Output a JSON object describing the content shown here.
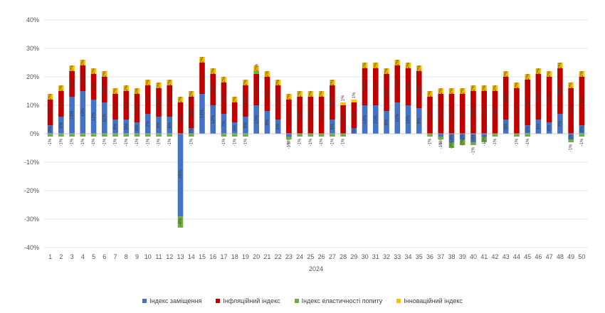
{
  "chart_data": {
    "type": "bar",
    "stacked": true,
    "xlabel": "2024",
    "ylim": [
      -40,
      40
    ],
    "yticks": [
      "40%",
      "30%",
      "20%",
      "10%",
      "0%",
      "-10%",
      "-20%",
      "-30%",
      "-40%"
    ],
    "categories": [
      "1",
      "2",
      "3",
      "4",
      "5",
      "6",
      "7",
      "8",
      "9",
      "10",
      "11",
      "12",
      "13",
      "14",
      "15",
      "16",
      "17",
      "18",
      "19",
      "20",
      "21",
      "22",
      "23",
      "24",
      "25",
      "26",
      "27",
      "28",
      "29",
      "30",
      "31",
      "32",
      "33",
      "34",
      "35",
      "36",
      "37",
      "38",
      "39",
      "40",
      "41",
      "42",
      "43",
      "44",
      "45",
      "46",
      "47",
      "48",
      "49",
      "50"
    ],
    "series": [
      {
        "name": "Індекс заміщення",
        "color": "#4472C4",
        "values": [
          3,
          6,
          13,
          15,
          12,
          11,
          5,
          5,
          4,
          7,
          6,
          6,
          -29,
          2,
          14,
          10,
          7,
          4,
          6,
          10,
          8,
          5,
          -1,
          0,
          0,
          0,
          5,
          0,
          2,
          10,
          10,
          8,
          11,
          10,
          9,
          0,
          -1,
          -3,
          -2,
          -3,
          -1,
          0,
          5,
          0,
          3,
          5,
          4,
          7,
          -2,
          3
        ]
      },
      {
        "name": "Інфляційний індекс",
        "color": "#C00000",
        "values": [
          9,
          9,
          9,
          9,
          9,
          9,
          9,
          10,
          10,
          10,
          10,
          11,
          11,
          11,
          11,
          11,
          11,
          7,
          11,
          11,
          12,
          12,
          12,
          13,
          13,
          13,
          12,
          10,
          9,
          13,
          13,
          13,
          13,
          13,
          13,
          13,
          14,
          14,
          14,
          15,
          15,
          15,
          15,
          16,
          16,
          16,
          16,
          16,
          16,
          17
        ]
      },
      {
        "name": "Індекс еластичності попиту",
        "color": "#70AD47",
        "values": [
          -1,
          -1,
          -1,
          -1,
          -1,
          -1,
          -1,
          -1,
          -1,
          -1,
          -1,
          -1,
          -4,
          -1,
          0,
          0,
          -1,
          -1,
          -1,
          1,
          0,
          0,
          -1,
          -1,
          -1,
          -1,
          -1,
          -1,
          0,
          0,
          0,
          0,
          0,
          0,
          0,
          -1,
          -1,
          -2,
          -2,
          -1,
          -2,
          -1,
          0,
          -1,
          -1,
          0,
          0,
          0,
          -1,
          -1
        ]
      },
      {
        "name": "Інноваційний індекс",
        "color": "#FFC000",
        "values": [
          2,
          2,
          2,
          2,
          2,
          2,
          2,
          2,
          2,
          2,
          2,
          2,
          2,
          2,
          2,
          2,
          2,
          2,
          2,
          2,
          2,
          2,
          2,
          2,
          2,
          2,
          2,
          1,
          1,
          2,
          2,
          2,
          2,
          2,
          2,
          2,
          2,
          2,
          2,
          2,
          2,
          2,
          2,
          2,
          2,
          2,
          2,
          2,
          2,
          2
        ]
      }
    ]
  }
}
